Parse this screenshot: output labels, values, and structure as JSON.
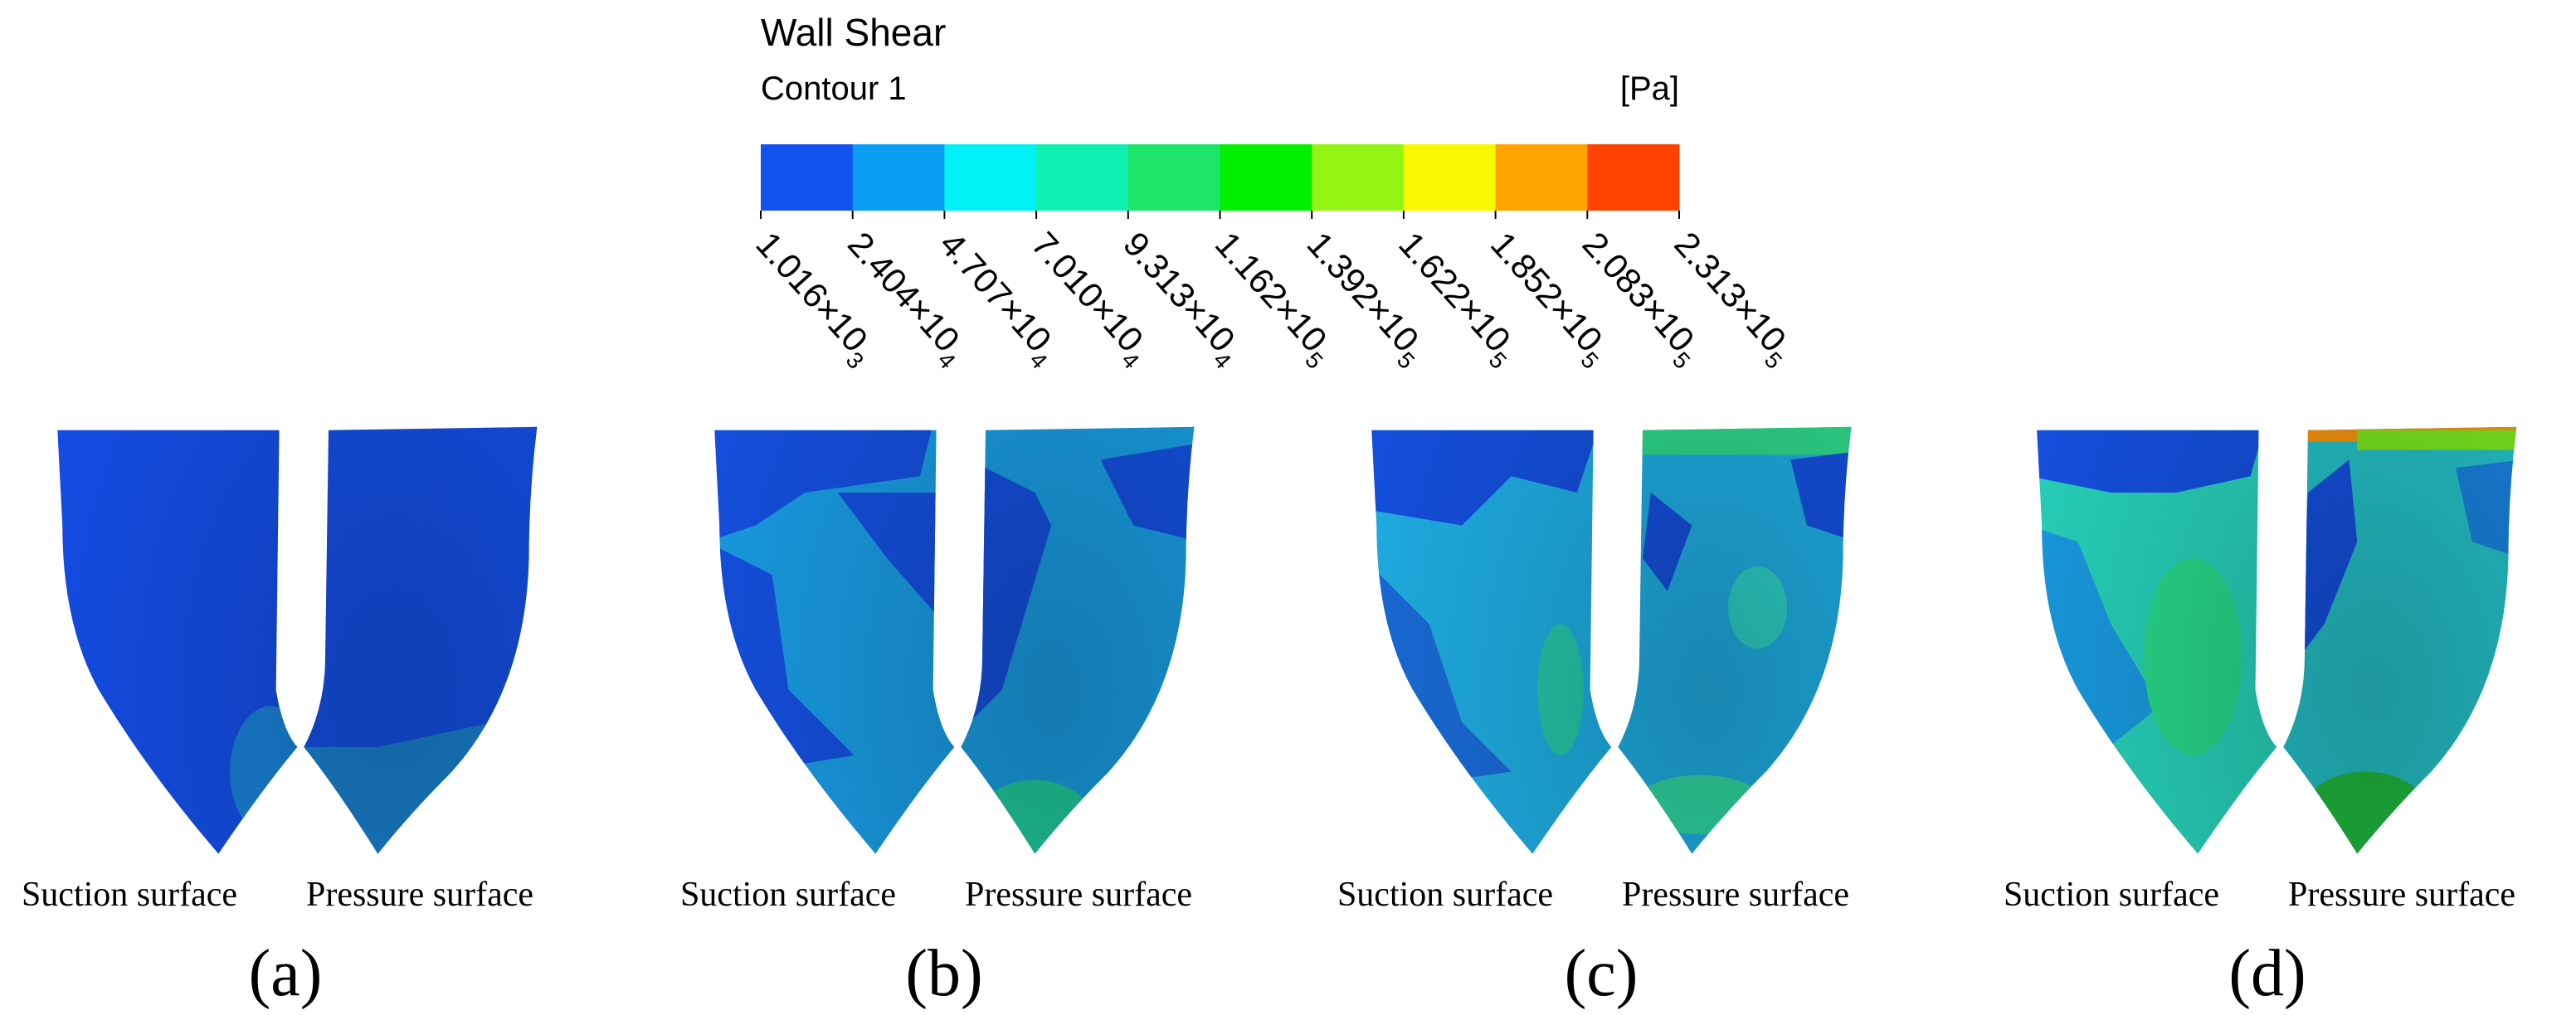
{
  "legend": {
    "title": "Wall Shear",
    "subtitle": "Contour 1",
    "unit": "[Pa]",
    "colors": [
      "#1452f0",
      "#0a9ef2",
      "#00f2f6",
      "#10f0b4",
      "#1ee46a",
      "#00f000",
      "#94f414",
      "#f8f800",
      "#ffa400",
      "#ff4200"
    ],
    "ticks": [
      {
        "base": "1.016×10",
        "exp": "3"
      },
      {
        "base": "2.404×10",
        "exp": "4"
      },
      {
        "base": "4.707×10",
        "exp": "4"
      },
      {
        "base": "7.010×10",
        "exp": "4"
      },
      {
        "base": "9.313×10",
        "exp": "4"
      },
      {
        "base": "1.162×10",
        "exp": "5"
      },
      {
        "base": "1.392×10",
        "exp": "5"
      },
      {
        "base": "1.622×10",
        "exp": "5"
      },
      {
        "base": "1.852×10",
        "exp": "5"
      },
      {
        "base": "2.083×10",
        "exp": "5"
      },
      {
        "base": "2.313×10",
        "exp": "5"
      }
    ]
  },
  "panels": [
    {
      "suction": "Suction surface",
      "pressure": "Pressure surface",
      "label": "(a)"
    },
    {
      "suction": "Suction surface",
      "pressure": "Pressure surface",
      "label": "(b)"
    },
    {
      "suction": "Suction surface",
      "pressure": "Pressure surface",
      "label": "(c)"
    },
    {
      "suction": "Suction surface",
      "pressure": "Pressure surface",
      "label": "(d)"
    }
  ]
}
